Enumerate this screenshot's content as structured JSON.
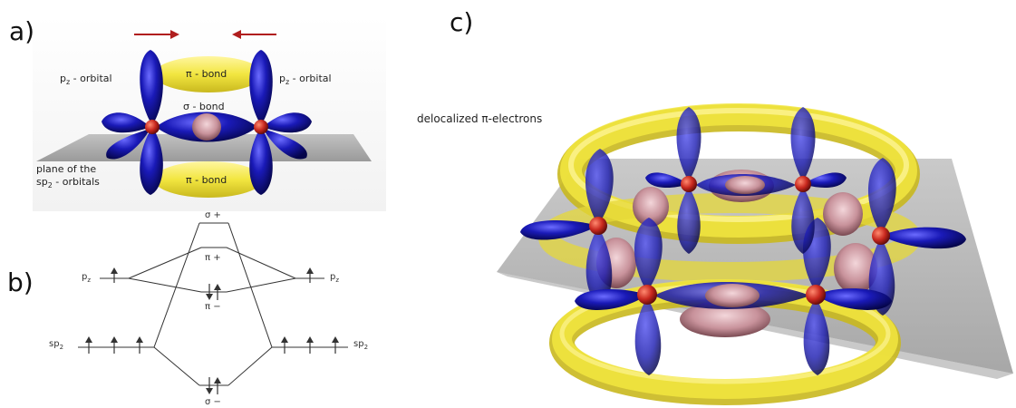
{
  "panels": {
    "a": "a)",
    "b": "b)",
    "c": "c)"
  },
  "panel_a": {
    "pz_left": "p",
    "pz_left_sub": "z",
    "pz_left_suffix": " - orbital",
    "pz_right": "p",
    "pz_right_sub": "z",
    "pz_right_suffix": " - orbital",
    "pi_bond_top": "π - bond",
    "sigma_bond": "σ - bond",
    "pi_bond_bottom": "π - bond",
    "plane_line1": "plane of the",
    "plane_line2_prefix": "sp",
    "plane_line2_sub": "2",
    "plane_line2_suffix": " - orbitals"
  },
  "panel_b": {
    "sigma_plus": "σ +",
    "pi_plus": "π +",
    "pi_minus": "π −",
    "sigma_minus": "σ −",
    "pz_left": "p",
    "pz_left_sub": "z",
    "pz_right": "p",
    "pz_right_sub": "z",
    "sp2_left": "sp",
    "sp2_left_sub": "2",
    "sp2_right": "sp",
    "sp2_right_sub": "2"
  },
  "panel_c": {
    "delocalized_label": "delocalized π-electrons"
  },
  "colors": {
    "orbital_blue": "#1a1ab8",
    "bond_yellow": "#f2e640",
    "atom_red": "#c8281e",
    "sigma_pink": "#d9a8b0",
    "plane_grey": "#9a9a9a",
    "arrow_red": "#b01e1e"
  }
}
